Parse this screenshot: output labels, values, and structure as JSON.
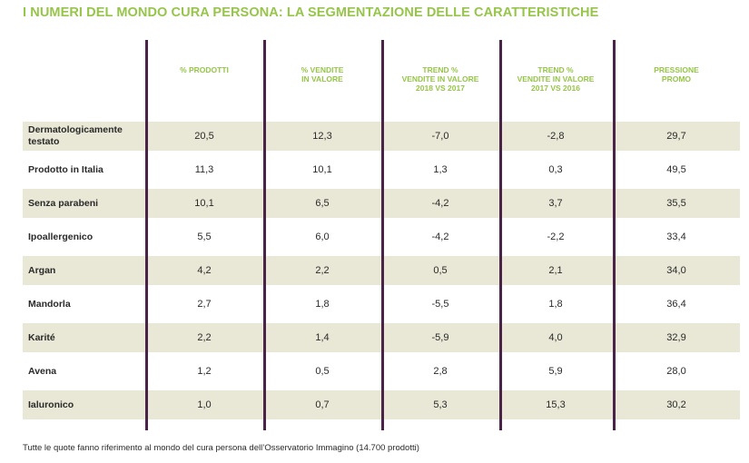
{
  "title": "I NUMERI DEL MONDO CURA PERSONA: LA SEGMENTAZIONE DELLE CARATTERISTICHE",
  "columns": [
    "% PRODOTTI",
    "% VENDITE\nIN VALORE",
    "TREND %\nVENDITE IN VALORE\n2018 VS 2017",
    "TREND %\nVENDITE IN VALORE\n2017 VS 2016",
    "PRESSIONE\nPROMO"
  ],
  "rows": [
    {
      "label": "Dermatologicamente testato",
      "values": [
        "20,5",
        "12,3",
        "-7,0",
        "-2,8",
        "29,7"
      ]
    },
    {
      "label": "Prodotto in Italia",
      "values": [
        "11,3",
        "10,1",
        "1,3",
        "0,3",
        "49,5"
      ]
    },
    {
      "label": "Senza parabeni",
      "values": [
        "10,1",
        "6,5",
        "-4,2",
        "3,7",
        "35,5"
      ]
    },
    {
      "label": "Ipoallergenico",
      "values": [
        "5,5",
        "6,0",
        "-4,2",
        "-2,2",
        "33,4"
      ]
    },
    {
      "label": "Argan",
      "values": [
        "4,2",
        "2,2",
        "0,5",
        "2,1",
        "34,0"
      ]
    },
    {
      "label": "Mandorla",
      "values": [
        "2,7",
        "1,8",
        "-5,5",
        "1,8",
        "36,4"
      ]
    },
    {
      "label": "Karité",
      "values": [
        "2,2",
        "1,4",
        "-5,9",
        "4,0",
        "32,9"
      ]
    },
    {
      "label": "Avena",
      "values": [
        "1,2",
        "0,5",
        "2,8",
        "5,9",
        "28,0"
      ]
    },
    {
      "label": "Ialuronico",
      "values": [
        "1,0",
        "0,7",
        "5,3",
        "15,3",
        "30,2"
      ]
    }
  ],
  "footnote": "Tutte le quote fanno riferimento al mondo del cura persona dell’Osservatorio Immagino (14.700 prodotti)",
  "colors": {
    "accent": "#96c54a",
    "divider": "#4a2448",
    "stripe": "#e9e7d5"
  }
}
